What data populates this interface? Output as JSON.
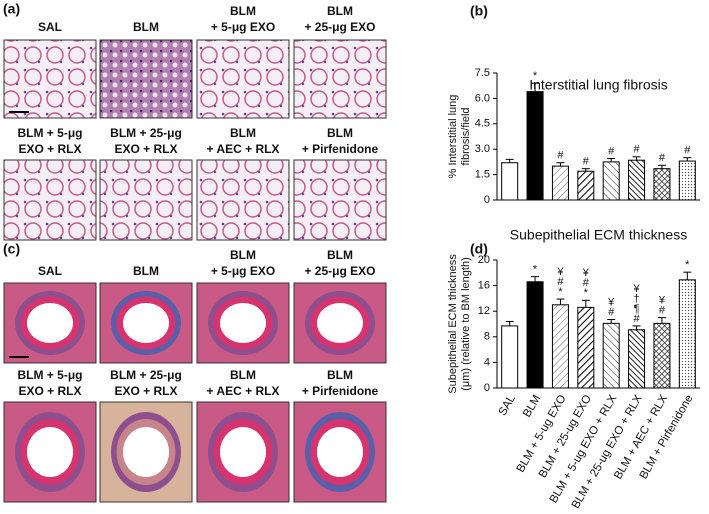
{
  "images": {
    "a": {
      "label": "(a)",
      "captions": [
        [
          "SAL"
        ],
        [
          "BLM"
        ],
        [
          "BLM",
          "+ 5-μg EXO"
        ],
        [
          "BLM",
          "+ 25-μg EXO"
        ],
        [
          "BLM + 5-μg",
          "EXO + RLX"
        ],
        [
          "BLM + 25-μg",
          "EXO + RLX"
        ],
        [
          "BLM",
          "+ AEC + RLX"
        ],
        [
          "BLM",
          "+ Pirfenidone"
        ]
      ]
    },
    "c": {
      "label": "(c)",
      "captions": [
        [
          "SAL"
        ],
        [
          "BLM"
        ],
        [
          "BLM",
          "+ 5-μg EXO"
        ],
        [
          "BLM",
          "+ 25-μg EXO"
        ],
        [
          "BLM + 5-μg",
          "EXO + RLX"
        ],
        [
          "BLM + 25-μg",
          "EXO + RLX"
        ],
        [
          "BLM",
          "+ AEC + RLX"
        ],
        [
          "BLM",
          "+ Pirfenidone"
        ]
      ]
    }
  },
  "chart_data": [
    {
      "type": "bar",
      "panel": "(b)",
      "title": "Interstitial lung fibrosis",
      "ylabel": [
        "% Interstitial lung",
        "fibrosis/field"
      ],
      "values": [
        2.2,
        6.4,
        2.0,
        1.7,
        2.25,
        2.35,
        1.85,
        2.3
      ],
      "errors": [
        0.2,
        0.5,
        0.2,
        0.15,
        0.2,
        0.2,
        0.2,
        0.2
      ],
      "annotations": [
        [],
        [
          "*"
        ],
        [
          "#"
        ],
        [
          "#"
        ],
        [
          "#"
        ],
        [
          "#"
        ],
        [
          "#"
        ],
        [
          "#"
        ]
      ],
      "fills": [
        "white",
        "black",
        "hatch",
        "hatch-bold",
        "back-hatch",
        "back-hatch-bold",
        "cross-hatch",
        "dots"
      ],
      "ylim": [
        0,
        7.5
      ],
      "yticks": [
        0,
        {
          "value": 1.5,
          "label": "1.5"
        },
        {
          "value": 3,
          "label": "3.0"
        },
        {
          "value": 4.5,
          "label": "4.5"
        },
        {
          "value": 6,
          "label": "6.0"
        },
        {
          "value": 7.5,
          "label": "7.5"
        }
      ]
    },
    {
      "type": "bar",
      "panel": "(d)",
      "title": "Subepithelial ECM thickness",
      "ylabel": [
        "Subepithelial ECM thickness",
        "(μm) (relative to BM length)"
      ],
      "categories": [
        "SAL",
        "BLM",
        "BLM + 5-ug EXO",
        "BLM + 25-ug EXO",
        "BLM + 5-ug EXO + RLX",
        "BLM + 25-ug EXO + RLX",
        "BLM + AEC + RLX",
        "BLM + Pirfenidone"
      ],
      "values": [
        9.7,
        16.6,
        13.0,
        12.6,
        10.1,
        9.1,
        10.1,
        16.9
      ],
      "errors": [
        0.7,
        0.8,
        0.9,
        1.1,
        0.6,
        0.6,
        0.9,
        1.2
      ],
      "annotations": [
        [],
        [
          "*"
        ],
        [
          "¥",
          "#",
          "*"
        ],
        [
          "¥",
          "#",
          "*"
        ],
        [
          "¥",
          "#"
        ],
        [
          "¥",
          "†",
          "¶",
          "#"
        ],
        [
          "¥",
          "#"
        ],
        [
          "*"
        ]
      ],
      "fills": [
        "white",
        "black",
        "hatch",
        "hatch-bold",
        "back-hatch",
        "back-hatch-bold",
        "cross-hatch",
        "dots"
      ],
      "ylim": [
        0,
        20
      ],
      "yticks": [
        0,
        4,
        8,
        12,
        16,
        20
      ]
    }
  ]
}
